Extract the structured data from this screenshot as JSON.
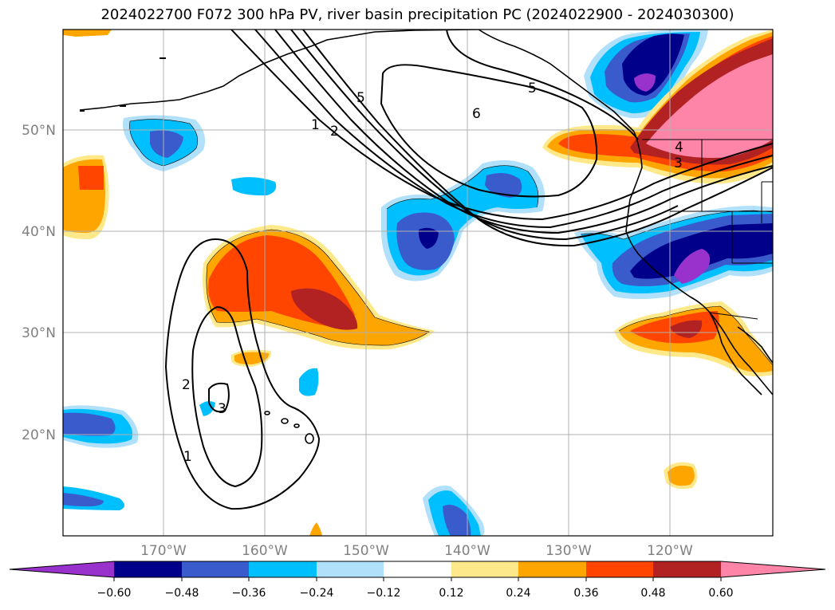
{
  "title": "2024022700 F072 300 hPa PV, river basin precipitation PC (2024022900 - 2024030300)",
  "lat_labels": [
    "50°N",
    "40°N",
    "30°N",
    "20°N"
  ],
  "lon_labels": [
    "170°W",
    "160°W",
    "150°W",
    "140°W",
    "130°W",
    "120°W"
  ],
  "colorbar": {
    "ticks": [
      "−0.60",
      "−0.48",
      "−0.36",
      "−0.24",
      "−0.12",
      "0.12",
      "0.24",
      "0.36",
      "0.48",
      "0.60"
    ],
    "colors": [
      "#9932cc",
      "#00008b",
      "#3a5bcc",
      "#00bfff",
      "#b0e0fa",
      "#ffffff",
      "#fde98a",
      "#ffa500",
      "#ff4500",
      "#b22222",
      "#ff85a8"
    ]
  },
  "contour_labels": {
    "c6": "6",
    "c5a": "5",
    "c5b": "5",
    "c1a": "1",
    "c2a": "2",
    "c4": "4",
    "c3a": "3",
    "c2b": "2",
    "c1b": "1",
    "c3b": "3"
  },
  "colors": {
    "grid": "#b0b0b0",
    "coast": "#000000",
    "contour": "#000000"
  }
}
